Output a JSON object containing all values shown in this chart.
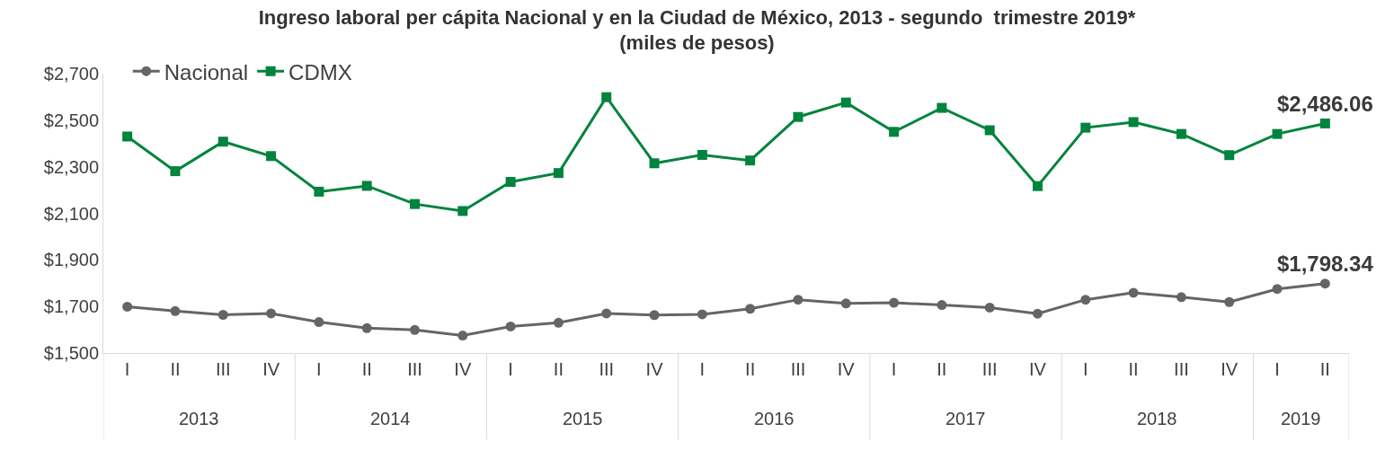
{
  "chart_data": {
    "type": "line",
    "title": "Ingreso laboral per cápita Nacional y en la Ciudad de México, 2013 - segundo  trimestre 2019*",
    "subtitle": "(miles de pesos)",
    "categories": [
      "I",
      "II",
      "III",
      "IV",
      "I",
      "II",
      "III",
      "IV",
      "I",
      "II",
      "III",
      "IV",
      "I",
      "II",
      "III",
      "IV",
      "I",
      "II",
      "III",
      "IV",
      "I",
      "II",
      "III",
      "IV",
      "I",
      "II"
    ],
    "annotations": [
      "2013",
      "2014",
      "2015",
      "2016",
      "2017",
      "2018",
      "2019"
    ],
    "series": [
      {
        "name": "Nacional",
        "color": "#646567",
        "marker": "circle",
        "values": [
          1699,
          1680,
          1664,
          1670,
          1633,
          1607,
          1599,
          1575,
          1614,
          1630,
          1670,
          1663,
          1666,
          1690,
          1729,
          1713,
          1716,
          1706,
          1695,
          1669,
          1729,
          1759,
          1740,
          1719,
          1775,
          1798.34
        ],
        "value_labels": [
          null,
          null,
          null,
          null,
          null,
          null,
          null,
          null,
          null,
          null,
          null,
          null,
          null,
          null,
          null,
          null,
          null,
          null,
          null,
          null,
          null,
          null,
          null,
          null,
          null,
          "$1,798.34"
        ]
      },
      {
        "name": "CDMX",
        "color": "#00843d",
        "marker": "square",
        "values": [
          2430,
          2281,
          2408,
          2346,
          2193,
          2218,
          2140,
          2110,
          2235,
          2273,
          2599,
          2315,
          2351,
          2327,
          2514,
          2576,
          2450,
          2553,
          2457,
          2217,
          2468,
          2492,
          2441,
          2350,
          2441,
          2486.06
        ],
        "value_labels": [
          null,
          null,
          null,
          null,
          null,
          null,
          null,
          null,
          null,
          null,
          null,
          null,
          null,
          null,
          null,
          null,
          null,
          null,
          null,
          null,
          null,
          null,
          null,
          null,
          null,
          "$2,486.06"
        ]
      }
    ],
    "ylim": [
      1500,
      2700
    ],
    "yticks": [
      {
        "value": 1500,
        "label": "$1,500"
      },
      {
        "value": 1700,
        "label": "$1,700"
      },
      {
        "value": 1900,
        "label": "$1,900"
      },
      {
        "value": 2100,
        "label": "$2,100"
      },
      {
        "value": 2300,
        "label": "$2,300"
      },
      {
        "value": 2500,
        "label": "$2,500"
      },
      {
        "value": 2700,
        "label": "$2,700"
      }
    ],
    "legend": "top left",
    "line_style": "solid"
  }
}
